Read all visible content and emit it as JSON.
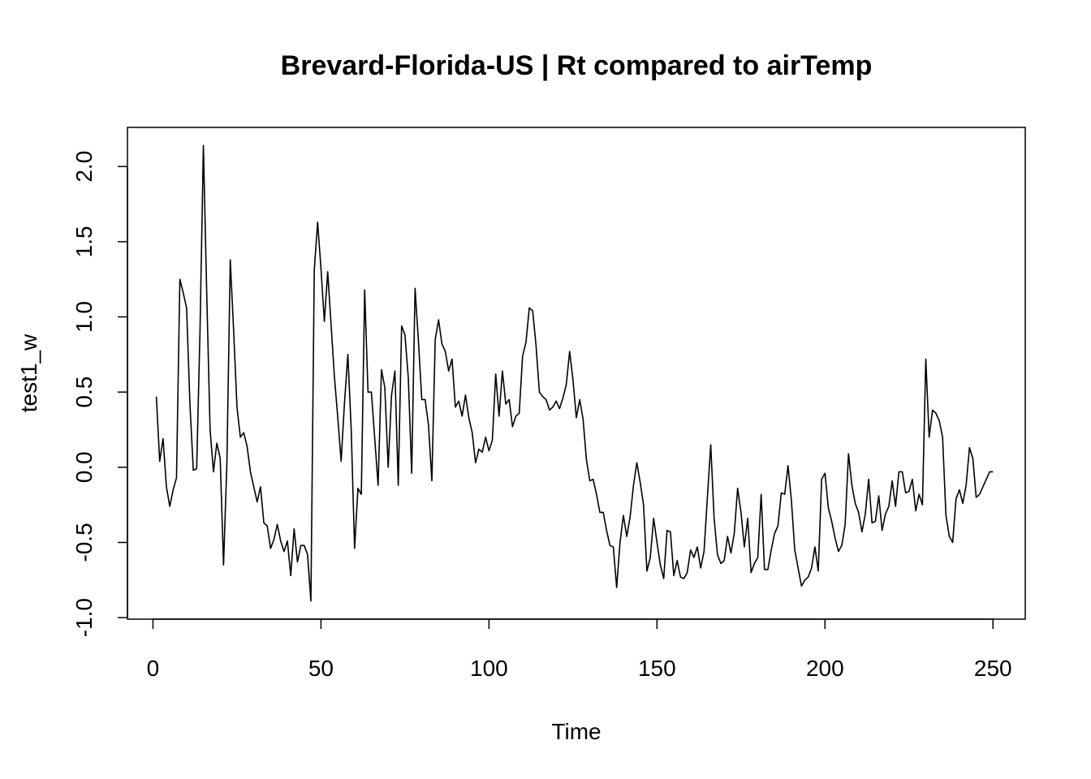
{
  "chart_data": {
    "type": "line",
    "title": "Brevard-Florida-US | Rt compared to airTemp",
    "xlabel": "Time",
    "ylabel": "test1_w",
    "xlim": [
      -7.6,
      259.6
    ],
    "ylim": [
      -1.01,
      2.26
    ],
    "x_ticks": [
      0,
      50,
      100,
      150,
      200,
      250
    ],
    "x_tick_labels": [
      "0",
      "50",
      "100",
      "150",
      "200",
      "250"
    ],
    "y_ticks": [
      -1.0,
      -0.5,
      0.0,
      0.5,
      1.0,
      1.5,
      2.0
    ],
    "y_tick_labels": [
      "-1.0",
      "-0.5",
      "0.0",
      "0.5",
      "1.0",
      "1.5",
      "2.0"
    ],
    "grid": false,
    "x_start": 1,
    "series": [
      {
        "values": [
          0.47,
          0.04,
          0.19,
          -0.13,
          -0.26,
          -0.15,
          -0.07,
          1.25,
          1.16,
          1.06,
          0.42,
          -0.02,
          -0.01,
          0.91,
          2.14,
          1.15,
          0.25,
          -0.03,
          0.16,
          0.06,
          -0.65,
          0.03,
          1.38,
          0.91,
          0.4,
          0.2,
          0.23,
          0.14,
          -0.03,
          -0.13,
          -0.23,
          -0.13,
          -0.37,
          -0.39,
          -0.54,
          -0.48,
          -0.38,
          -0.49,
          -0.56,
          -0.49,
          -0.72,
          -0.41,
          -0.63,
          -0.52,
          -0.52,
          -0.58,
          -0.89,
          1.31,
          1.63,
          1.32,
          0.97,
          1.3,
          0.95,
          0.6,
          0.33,
          0.04,
          0.43,
          0.75,
          0.25,
          -0.54,
          -0.14,
          -0.18,
          1.18,
          0.5,
          0.5,
          0.19,
          -0.12,
          0.65,
          0.53,
          0.0,
          0.48,
          0.64,
          -0.12,
          0.94,
          0.88,
          0.59,
          -0.04,
          1.19,
          0.84,
          0.45,
          0.45,
          0.28,
          -0.09,
          0.85,
          0.98,
          0.82,
          0.77,
          0.64,
          0.72,
          0.4,
          0.44,
          0.34,
          0.48,
          0.33,
          0.23,
          0.03,
          0.12,
          0.1,
          0.2,
          0.11,
          0.18,
          0.62,
          0.34,
          0.64,
          0.42,
          0.45,
          0.27,
          0.34,
          0.36,
          0.74,
          0.83,
          1.06,
          1.04,
          0.81,
          0.5,
          0.47,
          0.45,
          0.38,
          0.4,
          0.44,
          0.39,
          0.46,
          0.55,
          0.77,
          0.58,
          0.33,
          0.45,
          0.32,
          0.05,
          -0.09,
          -0.08,
          -0.18,
          -0.3,
          -0.3,
          -0.42,
          -0.52,
          -0.53,
          -0.8,
          -0.5,
          -0.32,
          -0.46,
          -0.33,
          -0.12,
          0.03,
          -0.1,
          -0.25,
          -0.69,
          -0.6,
          -0.34,
          -0.5,
          -0.65,
          -0.74,
          -0.42,
          -0.43,
          -0.72,
          -0.62,
          -0.73,
          -0.74,
          -0.7,
          -0.55,
          -0.6,
          -0.53,
          -0.67,
          -0.56,
          -0.2,
          0.15,
          -0.34,
          -0.58,
          -0.64,
          -0.62,
          -0.46,
          -0.57,
          -0.44,
          -0.14,
          -0.3,
          -0.53,
          -0.34,
          -0.7,
          -0.64,
          -0.6,
          -0.18,
          -0.68,
          -0.68,
          -0.55,
          -0.44,
          -0.39,
          -0.17,
          -0.18,
          0.01,
          -0.22,
          -0.55,
          -0.67,
          -0.79,
          -0.75,
          -0.73,
          -0.67,
          -0.53,
          -0.69,
          -0.08,
          -0.04,
          -0.27,
          -0.36,
          -0.47,
          -0.56,
          -0.52,
          -0.38,
          0.09,
          -0.12,
          -0.24,
          -0.3,
          -0.43,
          -0.31,
          -0.08,
          -0.37,
          -0.36,
          -0.19,
          -0.42,
          -0.31,
          -0.26,
          -0.09,
          -0.26,
          -0.03,
          -0.03,
          -0.17,
          -0.16,
          -0.08,
          -0.29,
          -0.18,
          -0.25,
          0.72,
          0.2,
          0.38,
          0.36,
          0.31,
          0.2,
          -0.32,
          -0.46,
          -0.5,
          -0.21,
          -0.15,
          -0.24,
          -0.12,
          0.13,
          0.06,
          -0.2,
          -0.18,
          -0.13,
          -0.08,
          -0.03,
          -0.03
        ]
      }
    ]
  }
}
